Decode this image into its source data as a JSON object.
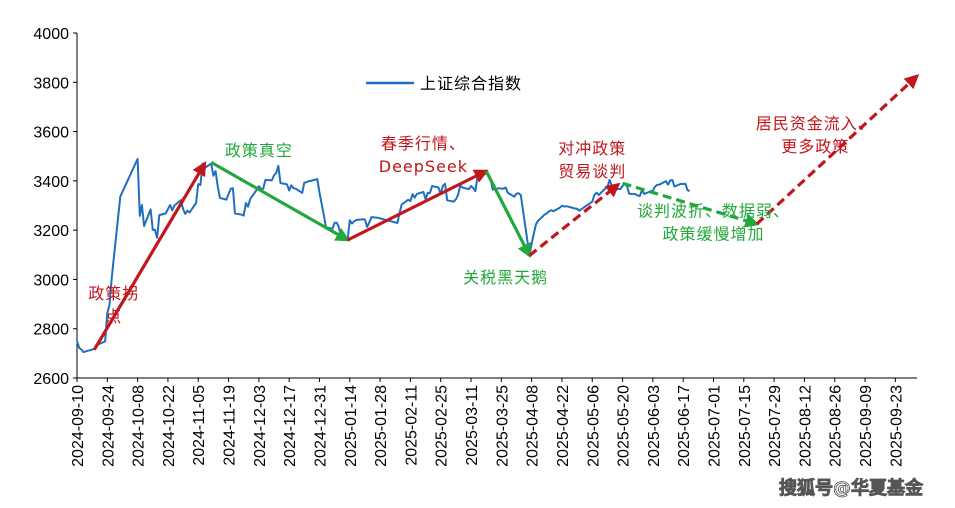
{
  "chart_data": {
    "type": "line",
    "title": "",
    "xlabel": "",
    "ylabel": "",
    "ylim": [
      2600,
      4000
    ],
    "y_ticks": [
      2600,
      2800,
      3000,
      3200,
      3400,
      3600,
      3800,
      4000
    ],
    "x_range": [
      "2024-09-10",
      "2025-10-03"
    ],
    "x_ticks": [
      "2024-09-10",
      "2024-09-24",
      "2024-10-08",
      "2024-10-22",
      "2024-11-05",
      "2024-11-19",
      "2024-12-03",
      "2024-12-17",
      "2024-12-31",
      "2025-01-14",
      "2025-01-28",
      "2025-02-11",
      "2025-02-25",
      "2025-03-11",
      "2025-03-25",
      "2025-04-08",
      "2025-04-22",
      "2025-05-06",
      "2025-05-20",
      "2025-06-03",
      "2025-06-17",
      "2025-07-01",
      "2025-07-15",
      "2025-07-29",
      "2025-08-12",
      "2025-08-26",
      "2025-09-09",
      "2025-09-23"
    ],
    "grid": false,
    "legend": {
      "position": "top-center",
      "entries": [
        "上证综合指数"
      ]
    },
    "colors": {
      "series": "#1f6fbf",
      "red": "#c0161c",
      "green": "#22a83a",
      "axis": "#000000"
    },
    "series": [
      {
        "name": "上证综合指数",
        "points": [
          [
            "2024-09-10",
            2750
          ],
          [
            "2024-09-11",
            2722
          ],
          [
            "2024-09-12",
            2716
          ],
          [
            "2024-09-13",
            2705
          ],
          [
            "2024-09-18",
            2718
          ],
          [
            "2024-09-19",
            2736
          ],
          [
            "2024-09-20",
            2737
          ],
          [
            "2024-09-23",
            2748
          ],
          [
            "2024-09-24",
            2863
          ],
          [
            "2024-09-25",
            2897
          ],
          [
            "2024-09-26",
            3000
          ],
          [
            "2024-09-27",
            3087
          ],
          [
            "2024-09-30",
            3336
          ],
          [
            "2024-10-08",
            3489
          ],
          [
            "2024-10-09",
            3258
          ],
          [
            "2024-10-10",
            3302
          ],
          [
            "2024-10-11",
            3217
          ],
          [
            "2024-10-14",
            3284
          ],
          [
            "2024-10-15",
            3201
          ],
          [
            "2024-10-16",
            3202
          ],
          [
            "2024-10-17",
            3169
          ],
          [
            "2024-10-18",
            3261
          ],
          [
            "2024-10-21",
            3268
          ],
          [
            "2024-10-22",
            3285
          ],
          [
            "2024-10-23",
            3302
          ],
          [
            "2024-10-24",
            3280
          ],
          [
            "2024-10-25",
            3300
          ],
          [
            "2024-10-28",
            3322
          ],
          [
            "2024-10-29",
            3286
          ],
          [
            "2024-10-30",
            3266
          ],
          [
            "2024-10-31",
            3279
          ],
          [
            "2024-11-01",
            3272
          ],
          [
            "2024-11-04",
            3310
          ],
          [
            "2024-11-05",
            3387
          ],
          [
            "2024-11-06",
            3383
          ],
          [
            "2024-11-07",
            3470
          ],
          [
            "2024-11-08",
            3452
          ],
          [
            "2024-11-11",
            3470
          ],
          [
            "2024-11-12",
            3421
          ],
          [
            "2024-11-13",
            3439
          ],
          [
            "2024-11-14",
            3379
          ],
          [
            "2024-11-15",
            3331
          ],
          [
            "2024-11-18",
            3324
          ],
          [
            "2024-11-19",
            3346
          ],
          [
            "2024-11-20",
            3368
          ],
          [
            "2024-11-21",
            3370
          ],
          [
            "2024-11-22",
            3268
          ],
          [
            "2024-11-25",
            3263
          ],
          [
            "2024-11-26",
            3259
          ],
          [
            "2024-11-27",
            3310
          ],
          [
            "2024-11-28",
            3295
          ],
          [
            "2024-11-29",
            3326
          ],
          [
            "2024-12-02",
            3364
          ],
          [
            "2024-12-03",
            3378
          ],
          [
            "2024-12-04",
            3367
          ],
          [
            "2024-12-05",
            3368
          ],
          [
            "2024-12-06",
            3404
          ],
          [
            "2024-12-09",
            3402
          ],
          [
            "2024-12-10",
            3422
          ],
          [
            "2024-12-11",
            3432
          ],
          [
            "2024-12-12",
            3461
          ],
          [
            "2024-12-13",
            3391
          ],
          [
            "2024-12-16",
            3386
          ],
          [
            "2024-12-17",
            3361
          ],
          [
            "2024-12-18",
            3382
          ],
          [
            "2024-12-19",
            3370
          ],
          [
            "2024-12-20",
            3368
          ],
          [
            "2024-12-23",
            3351
          ],
          [
            "2024-12-24",
            3393
          ],
          [
            "2024-12-25",
            3394
          ],
          [
            "2024-12-26",
            3399
          ],
          [
            "2024-12-27",
            3400
          ],
          [
            "2024-12-30",
            3407
          ],
          [
            "2024-12-31",
            3352
          ],
          [
            "2025-01-02",
            3262
          ],
          [
            "2025-01-03",
            3211
          ],
          [
            "2025-01-06",
            3206
          ],
          [
            "2025-01-07",
            3230
          ],
          [
            "2025-01-08",
            3230
          ],
          [
            "2025-01-09",
            3211
          ],
          [
            "2025-01-10",
            3169
          ],
          [
            "2025-01-13",
            3161
          ],
          [
            "2025-01-14",
            3240
          ],
          [
            "2025-01-15",
            3227
          ],
          [
            "2025-01-16",
            3236
          ],
          [
            "2025-01-17",
            3241
          ],
          [
            "2025-01-20",
            3244
          ],
          [
            "2025-01-21",
            3243
          ],
          [
            "2025-01-22",
            3213
          ],
          [
            "2025-01-23",
            3231
          ],
          [
            "2025-01-24",
            3253
          ],
          [
            "2025-01-27",
            3250
          ],
          [
            "2025-02-05",
            3229
          ],
          [
            "2025-02-06",
            3270
          ],
          [
            "2025-02-07",
            3304
          ],
          [
            "2025-02-10",
            3323
          ],
          [
            "2025-02-11",
            3318
          ],
          [
            "2025-02-12",
            3346
          ],
          [
            "2025-02-13",
            3332
          ],
          [
            "2025-02-14",
            3347
          ],
          [
            "2025-02-17",
            3355
          ],
          [
            "2025-02-18",
            3325
          ],
          [
            "2025-02-19",
            3351
          ],
          [
            "2025-02-20",
            3350
          ],
          [
            "2025-02-21",
            3379
          ],
          [
            "2025-02-24",
            3373
          ],
          [
            "2025-02-25",
            3347
          ],
          [
            "2025-02-26",
            3380
          ],
          [
            "2025-02-27",
            3388
          ],
          [
            "2025-02-28",
            3321
          ],
          [
            "2025-03-03",
            3316
          ],
          [
            "2025-03-04",
            3325
          ],
          [
            "2025-03-05",
            3342
          ],
          [
            "2025-03-06",
            3381
          ],
          [
            "2025-03-07",
            3373
          ],
          [
            "2025-03-10",
            3366
          ],
          [
            "2025-03-11",
            3379
          ],
          [
            "2025-03-12",
            3371
          ],
          [
            "2025-03-13",
            3358
          ],
          [
            "2025-03-14",
            3419
          ],
          [
            "2025-03-17",
            3426
          ],
          [
            "2025-03-18",
            3430
          ],
          [
            "2025-03-19",
            3427
          ],
          [
            "2025-03-20",
            3408
          ],
          [
            "2025-03-21",
            3364
          ],
          [
            "2025-03-24",
            3370
          ],
          [
            "2025-03-25",
            3369
          ],
          [
            "2025-03-26",
            3368
          ],
          [
            "2025-03-27",
            3373
          ],
          [
            "2025-03-28",
            3351
          ],
          [
            "2025-03-31",
            3336
          ],
          [
            "2025-04-01",
            3348
          ],
          [
            "2025-04-02",
            3350
          ],
          [
            "2025-04-03",
            3342
          ],
          [
            "2025-04-07",
            3097
          ],
          [
            "2025-04-08",
            3145
          ],
          [
            "2025-04-09",
            3186
          ],
          [
            "2025-04-10",
            3224
          ],
          [
            "2025-04-11",
            3238
          ],
          [
            "2025-04-14",
            3263
          ],
          [
            "2025-04-15",
            3268
          ],
          [
            "2025-04-16",
            3276
          ],
          [
            "2025-04-17",
            3281
          ],
          [
            "2025-04-18",
            3277
          ],
          [
            "2025-04-21",
            3291
          ],
          [
            "2025-04-22",
            3299
          ],
          [
            "2025-04-23",
            3296
          ],
          [
            "2025-04-24",
            3297
          ],
          [
            "2025-04-25",
            3295
          ],
          [
            "2025-04-28",
            3288
          ],
          [
            "2025-04-29",
            3287
          ],
          [
            "2025-04-30",
            3279
          ],
          [
            "2025-05-06",
            3316
          ],
          [
            "2025-05-07",
            3343
          ],
          [
            "2025-05-08",
            3352
          ],
          [
            "2025-05-09",
            3342
          ],
          [
            "2025-05-12",
            3369
          ],
          [
            "2025-05-13",
            3374
          ],
          [
            "2025-05-14",
            3404
          ],
          [
            "2025-05-15",
            3380
          ],
          [
            "2025-05-16",
            3367
          ],
          [
            "2025-05-19",
            3367
          ],
          [
            "2025-05-20",
            3380
          ],
          [
            "2025-05-21",
            3387
          ],
          [
            "2025-05-22",
            3380
          ],
          [
            "2025-05-23",
            3348
          ],
          [
            "2025-05-26",
            3346
          ],
          [
            "2025-05-27",
            3340
          ],
          [
            "2025-05-28",
            3339
          ],
          [
            "2025-05-29",
            3363
          ],
          [
            "2025-05-30",
            3347
          ],
          [
            "2025-06-03",
            3361
          ],
          [
            "2025-06-04",
            3376
          ],
          [
            "2025-06-05",
            3384
          ],
          [
            "2025-06-06",
            3385
          ],
          [
            "2025-06-09",
            3399
          ],
          [
            "2025-06-10",
            3385
          ],
          [
            "2025-06-11",
            3402
          ],
          [
            "2025-06-12",
            3403
          ],
          [
            "2025-06-13",
            3377
          ],
          [
            "2025-06-16",
            3388
          ],
          [
            "2025-06-17",
            3387
          ],
          [
            "2025-06-18",
            3388
          ],
          [
            "2025-06-19",
            3362
          ],
          [
            "2025-06-20",
            3359
          ]
        ]
      }
    ],
    "arrows": [
      {
        "from": [
          "2024-09-18",
          2715
        ],
        "to": [
          "2024-11-08",
          3470
        ],
        "color": "red",
        "style": "solid"
      },
      {
        "from": [
          "2024-11-11",
          3475
        ],
        "to": [
          "2025-01-13",
          3160
        ],
        "color": "green",
        "style": "solid"
      },
      {
        "from": [
          "2025-01-13",
          3160
        ],
        "to": [
          "2025-03-18",
          3440
        ],
        "color": "red",
        "style": "solid"
      },
      {
        "from": [
          "2025-03-18",
          3440
        ],
        "to": [
          "2025-04-07",
          3097
        ],
        "color": "green",
        "style": "solid"
      },
      {
        "from": [
          "2025-04-07",
          3097
        ],
        "to": [
          "2025-05-18",
          3385
        ],
        "color": "red",
        "style": "dashed"
      },
      {
        "from": [
          "2025-05-20",
          3390
        ],
        "to": [
          "2025-07-21",
          3225
        ],
        "color": "green",
        "style": "dashed"
      },
      {
        "from": [
          "2025-07-21",
          3225
        ],
        "to": [
          "2025-10-03",
          3825
        ],
        "color": "red",
        "style": "dashed"
      }
    ],
    "annotations": [
      {
        "lines": [
          "政策拐",
          "点"
        ],
        "color": "red",
        "at": [
          "2024-09-27",
          2920
        ]
      },
      {
        "lines": [
          "政策真空"
        ],
        "color": "green",
        "at": [
          "2024-12-03",
          3500
        ]
      },
      {
        "lines": [
          "春季行情、",
          "DeepSeek"
        ],
        "color": "red",
        "at": [
          "2025-02-17",
          3530
        ]
      },
      {
        "lines": [
          "关税黑天鹅"
        ],
        "color": "green",
        "at": [
          "2025-03-27",
          2985
        ]
      },
      {
        "lines": [
          "对冲政策",
          "贸易谈判"
        ],
        "color": "red",
        "at": [
          "2025-05-06",
          3510
        ]
      },
      {
        "lines": [
          "谈判波折、数据弱、",
          "政策缓慢增加"
        ],
        "color": "green",
        "at": [
          "2025-07-01",
          3255
        ]
      },
      {
        "lines": [
          "居民资金流入、",
          "更多政策"
        ],
        "color": "red",
        "at": [
          "2025-08-17",
          3610
        ]
      }
    ]
  },
  "watermark": {
    "text": "搜狐号@华夏基金"
  }
}
